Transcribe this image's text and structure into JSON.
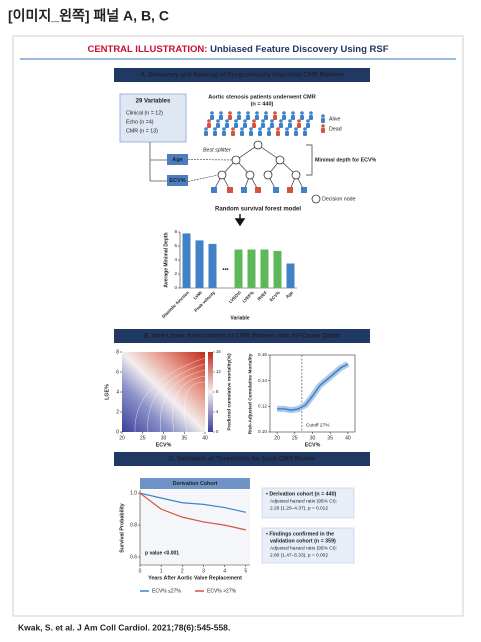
{
  "header": "[이미지_왼쪽] 패널 A, B, C",
  "illustration": {
    "label": "CENTRAL ILLUSTRATION:",
    "title": "Unbiased Feature Discovery Using RSF"
  },
  "panel_a": {
    "title": "A. Discovery and Ranking of Prognostically Important CMR Markers",
    "variables": {
      "title": "29 Variables",
      "items": [
        "Clinical (n = 12)",
        "Echo (n =4)",
        "CMR (n = 13)"
      ]
    },
    "cohort": "Aortic stenosis patients underwent CMR",
    "cohort_n": "(n = 440)",
    "legend": [
      "Alive",
      "Dead"
    ],
    "best_splitter": "Best splitter",
    "splitters": [
      "Age",
      "ECV%"
    ],
    "minimal_depth": "Minimal depth for ECV%",
    "decision_node": "Decision node",
    "model": "Random survival forest model",
    "chart": {
      "type": "bar",
      "y_label": "Average Minimal Depth",
      "x_label": "Variable",
      "categories": [
        "Diastolic function",
        "LVMi",
        "Peak velocity",
        "LVEDVi",
        "LVEF%",
        "RVEF",
        "ECV%",
        "Age"
      ],
      "values": [
        7.8,
        6.8,
        6.3,
        5.5,
        5.5,
        5.5,
        5.3,
        3.5
      ],
      "colors": [
        "#3f82c8",
        "#3f82c8",
        "#3f82c8",
        "#5db85a",
        "#5db85a",
        "#5db85a",
        "#5db85a",
        "#3f82c8"
      ],
      "label_colors": [
        "#222",
        "#222",
        "#222",
        "#c0392b",
        "#c0392b",
        "#c0392b",
        "#c0392b",
        "#222"
      ],
      "ellipsis": "•••",
      "ylim": [
        0,
        8
      ],
      "yticks": [
        0,
        2,
        4,
        6,
        8
      ]
    }
  },
  "panel_b": {
    "title": "B. Non-Linear Associations of CMR Markers with All-Cause Death",
    "heatmap": {
      "type": "heatmap",
      "y_label": "LGE%",
      "x_label": "ECV%",
      "xlim": [
        20,
        40
      ],
      "xticks": [
        20,
        25,
        30,
        35,
        40
      ],
      "ylim": [
        0,
        8
      ],
      "yticks": [
        0,
        2,
        4,
        6,
        8
      ],
      "colorbar_label": "Predicted cumulative mortality(%)",
      "clim": [
        0,
        16
      ],
      "cticks": [
        0,
        4,
        8,
        12,
        16
      ]
    },
    "curve": {
      "type": "line",
      "y_label": "Risk-Adjusted Cumulative Mortality",
      "x_label": "ECV%",
      "x": [
        20,
        22,
        24,
        26,
        28,
        30,
        32,
        35,
        38,
        40
      ],
      "values": [
        0.118,
        0.118,
        0.117,
        0.118,
        0.121,
        0.128,
        0.136,
        0.143,
        0.15,
        0.153
      ],
      "color": "#3a78c0",
      "xlim": [
        18,
        42
      ],
      "xticks": [
        20,
        25,
        30,
        35,
        40
      ],
      "ylim": [
        0.1,
        0.16
      ],
      "yticks": [
        {
          "value": 0.1,
          "label": "0.10"
        },
        0.12,
        0.14,
        0.16
      ],
      "cutoff": "Cutoff 27%",
      "cutoff_x": 27
    }
  },
  "panel_c": {
    "title": "C. Validation of Thresholds for Each CMR Marker",
    "chart": {
      "type": "line",
      "title": "Derivation Cohort",
      "y_label": "Survival Probability",
      "x_label": "Years After Aortic Valve Replacement",
      "x": [
        0,
        1,
        2,
        3,
        4,
        5
      ],
      "series": [
        {
          "name": "ECV% ≤27%",
          "color": "#3f82c8",
          "values": [
            1.0,
            0.97,
            0.94,
            0.93,
            0.91,
            0.88
          ]
        },
        {
          "name": "ECV% >27%",
          "color": "#d2553f",
          "values": [
            1.0,
            0.9,
            0.85,
            0.82,
            0.8,
            0.77
          ]
        }
      ],
      "xlim": [
        0,
        5.2
      ],
      "xticks": [
        0,
        1,
        2,
        3,
        4,
        5
      ],
      "ylim": [
        0.55,
        1.02
      ],
      "yticks": [
        {
          "value": 1,
          "label": "1.0"
        },
        0.8,
        0.6
      ],
      "p_value": "p value <0.001"
    },
    "findings": [
      {
        "title": "• Derivation cohort (n = 440)",
        "detail": [
          "Adjusted hazard ratio (95% CI):",
          "2.29 (1.20–4.37), p = 0.012"
        ]
      },
      {
        "title": "• Findings confirmed in the",
        "title2": "validation cohort (n = 359)",
        "detail": [
          "Adjusted hazard ratio (95% CI):",
          "2.80 (1.47–5.33), p = 0.002"
        ]
      }
    ]
  },
  "citation": "Kwak, S. et al. J Am Coll Cardiol. 2021;78(6):545-558."
}
